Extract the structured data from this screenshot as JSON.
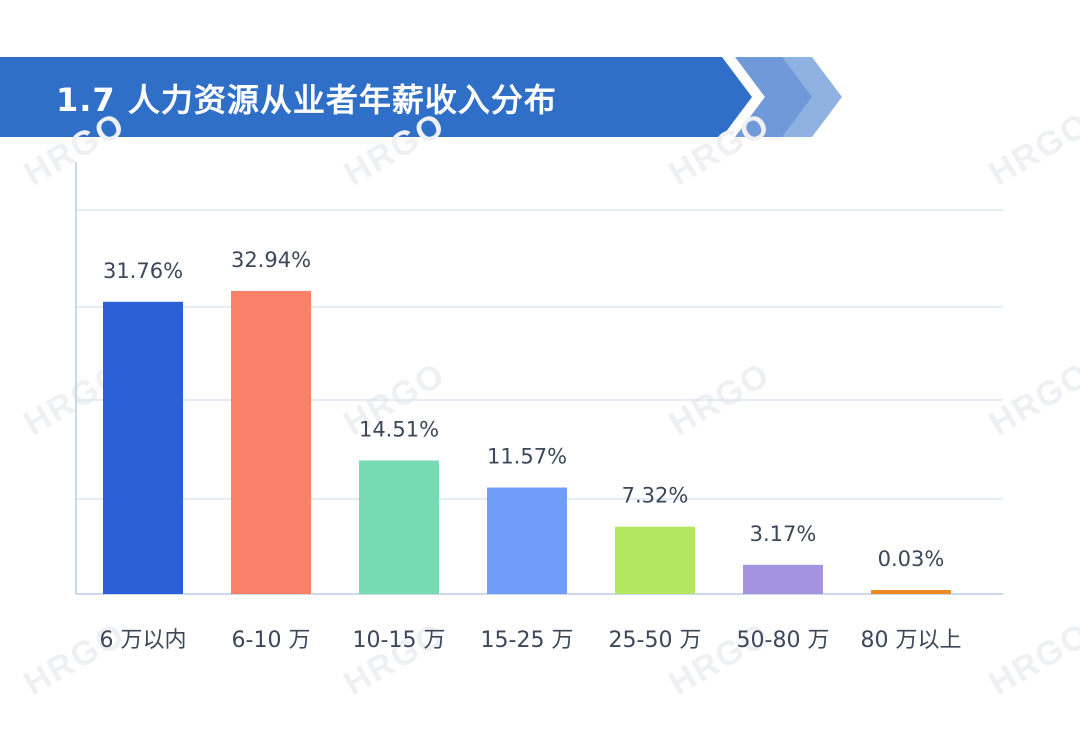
{
  "header": {
    "title": "1.7 人力资源从业者年薪收入分布"
  },
  "watermark": "HRGO",
  "colors": {
    "banner_dark": "#2f6fc7",
    "banner_light": "#8fb2e3",
    "grid": "#dbe6f1",
    "axis": "#b9cde4",
    "label_text": "#3c4759"
  },
  "chart_data": {
    "type": "bar",
    "title": "1.7 人力资源从业者年薪收入分布",
    "xlabel": "",
    "ylabel": "",
    "ylim": [
      0,
      45
    ],
    "grid": true,
    "categories": [
      "6 万以内",
      "6-10 万",
      "10-15 万",
      "15-25 万",
      "25-50 万",
      "50-80 万",
      "80 万以上"
    ],
    "values": [
      31.76,
      32.94,
      14.51,
      11.57,
      7.32,
      3.17,
      0.03
    ],
    "value_labels": [
      "31.76%",
      "32.94%",
      "14.51%",
      "11.57%",
      "7.32%",
      "3.17%",
      "0.03%"
    ],
    "bar_colors": [
      "#2d5fd9",
      "#fa8068",
      "#76dbb3",
      "#6e9cf8",
      "#b3e760",
      "#a393e0",
      "#f08a24"
    ]
  }
}
